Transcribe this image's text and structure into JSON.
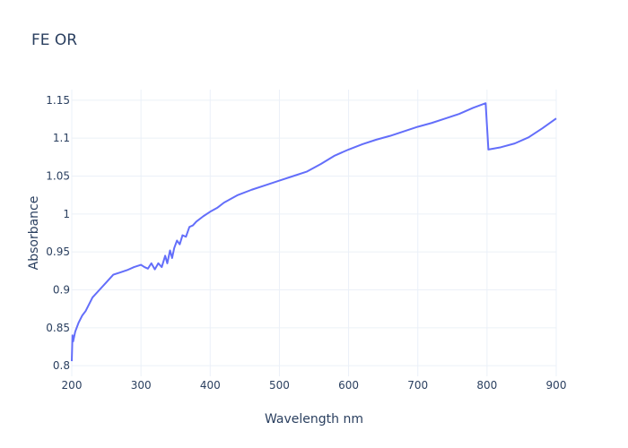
{
  "chart_data": {
    "type": "line",
    "title": "FE OR",
    "x_label": "Wavelength nm",
    "y_label": "Absorbance",
    "xlim": [
      200,
      900
    ],
    "xticks": [
      200,
      300,
      400,
      500,
      600,
      700,
      800,
      900
    ],
    "ylim": [
      0.786,
      1.164
    ],
    "yticks": [
      0.8,
      0.85,
      0.9,
      0.95,
      1,
      1.05,
      1.1,
      1.15
    ],
    "grid": true,
    "series": [
      {
        "name": "Absorbance",
        "color": "#636efa",
        "x": [
          200,
          201,
          202,
          205,
          210,
          215,
          220,
          230,
          240,
          250,
          260,
          270,
          280,
          290,
          300,
          305,
          310,
          315,
          320,
          325,
          330,
          335,
          338,
          342,
          345,
          348,
          352,
          356,
          360,
          365,
          370,
          375,
          380,
          390,
          400,
          410,
          420,
          440,
          460,
          480,
          500,
          520,
          540,
          560,
          580,
          600,
          620,
          640,
          660,
          680,
          700,
          720,
          740,
          760,
          780,
          798,
          802,
          820,
          840,
          860,
          880,
          900
        ],
        "values": [
          0.806,
          0.84,
          0.832,
          0.845,
          0.857,
          0.866,
          0.872,
          0.89,
          0.9,
          0.91,
          0.92,
          0.923,
          0.926,
          0.93,
          0.933,
          0.93,
          0.928,
          0.935,
          0.927,
          0.935,
          0.93,
          0.945,
          0.935,
          0.952,
          0.942,
          0.955,
          0.965,
          0.96,
          0.972,
          0.97,
          0.983,
          0.985,
          0.99,
          0.997,
          1.003,
          1.008,
          1.015,
          1.025,
          1.032,
          1.038,
          1.044,
          1.05,
          1.056,
          1.066,
          1.077,
          1.085,
          1.092,
          1.098,
          1.103,
          1.109,
          1.115,
          1.12,
          1.126,
          1.132,
          1.14,
          1.146,
          1.085,
          1.088,
          1.093,
          1.101,
          1.113,
          1.126
        ]
      }
    ]
  }
}
